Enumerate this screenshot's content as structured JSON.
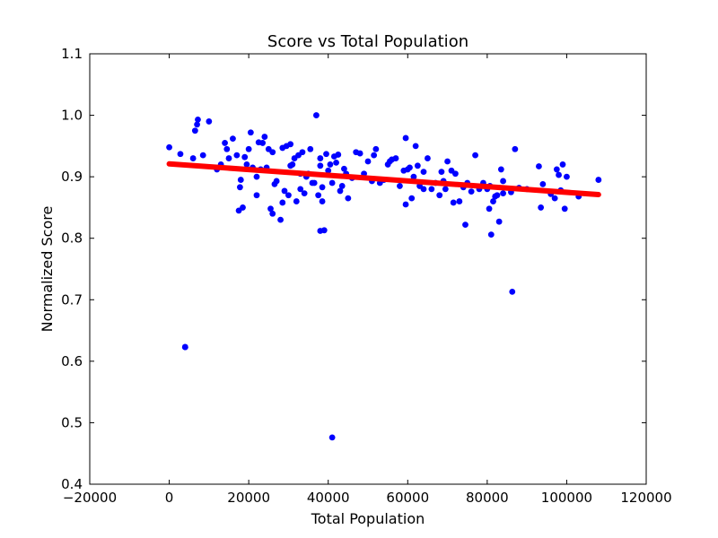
{
  "chart_data": {
    "type": "scatter",
    "title": "Score vs Total Population",
    "xlabel": "Total Population",
    "ylabel": "Normalized Score",
    "xlim": [
      -20000,
      120000
    ],
    "ylim": [
      0.4,
      1.1
    ],
    "xticks": [
      -20000,
      0,
      20000,
      40000,
      60000,
      80000,
      100000,
      120000
    ],
    "yticks": [
      0.4,
      0.5,
      0.6,
      0.7,
      0.8,
      0.9,
      1.0,
      1.1
    ],
    "xtick_labels": [
      "−20000",
      "0",
      "20000",
      "40000",
      "60000",
      "80000",
      "100000",
      "120000"
    ],
    "ytick_labels": [
      "0.4",
      "0.5",
      "0.6",
      "0.7",
      "0.8",
      "0.9",
      "1.0",
      "1.1"
    ],
    "grid": false,
    "colors": {
      "points": "#0000ff",
      "fit": "#ff0000"
    },
    "series": [
      {
        "kind": "points",
        "x": [
          0,
          2800,
          4000,
          6000,
          6500,
          7000,
          7200,
          8500,
          10000,
          12000,
          13000,
          14000,
          14500,
          15000,
          16000,
          17000,
          17500,
          17800,
          18000,
          18500,
          19000,
          19500,
          20000,
          20500,
          21000,
          22000,
          22000,
          22500,
          23000,
          23500,
          24000,
          24500,
          25000,
          25500,
          26000,
          26500,
          27000,
          28000,
          28500,
          28500,
          29000,
          29500,
          30000,
          30500,
          31000,
          31500,
          32000,
          32500,
          33000,
          33500,
          34000,
          34500,
          35000,
          35500,
          36000,
          36500,
          37000,
          37500,
          38000,
          38500,
          38000,
          39000,
          39500,
          40000,
          40500,
          41000,
          41500,
          42000,
          42500,
          43000,
          43500,
          44000,
          44500,
          45000,
          46000,
          47000,
          48000,
          49000,
          50000,
          51000,
          51500,
          52000,
          53000,
          54000,
          55000,
          55500,
          56000,
          57000,
          58000,
          59000,
          59500,
          60000,
          60500,
          61000,
          61500,
          62000,
          62500,
          63000,
          64000,
          65000,
          66000,
          67000,
          68000,
          68500,
          69000,
          69500,
          70000,
          71000,
          71500,
          72000,
          73000,
          74000,
          74500,
          75000,
          76000,
          77000,
          78000,
          79000,
          80000,
          80500,
          81000,
          81500,
          82000,
          82500,
          83000,
          83500,
          84000,
          86000,
          87000,
          88000,
          90000,
          93000,
          93500,
          94000,
          96000,
          97000,
          97500,
          98000,
          98500,
          99000,
          99500,
          100000,
          103000,
          108000,
          41000,
          4000,
          38500,
          30500,
          33000,
          80700,
          84000,
          38000,
          26000,
          64000,
          59500,
          86300
        ],
        "y": [
          0.948,
          0.937,
          0.623,
          0.93,
          0.975,
          0.985,
          0.993,
          0.935,
          0.99,
          0.912,
          0.92,
          0.955,
          0.945,
          0.93,
          0.962,
          0.935,
          0.845,
          0.883,
          0.895,
          0.85,
          0.932,
          0.92,
          0.945,
          0.972,
          0.915,
          0.9,
          0.87,
          0.956,
          0.912,
          0.955,
          0.965,
          0.915,
          0.945,
          0.848,
          0.94,
          0.888,
          0.893,
          0.83,
          0.947,
          0.858,
          0.877,
          0.95,
          0.87,
          0.953,
          0.92,
          0.93,
          0.86,
          0.935,
          0.88,
          0.94,
          0.873,
          0.9,
          0.905,
          0.945,
          0.89,
          0.89,
          1.0,
          0.87,
          0.93,
          0.883,
          0.918,
          0.813,
          0.937,
          0.91,
          0.92,
          0.89,
          0.933,
          0.923,
          0.936,
          0.877,
          0.885,
          0.913,
          0.905,
          0.865,
          0.898,
          0.94,
          0.938,
          0.905,
          0.925,
          0.893,
          0.935,
          0.945,
          0.89,
          0.895,
          0.92,
          0.925,
          0.928,
          0.93,
          0.885,
          0.91,
          0.963,
          0.912,
          0.915,
          0.865,
          0.9,
          0.95,
          0.918,
          0.885,
          0.908,
          0.93,
          0.88,
          0.89,
          0.87,
          0.908,
          0.893,
          0.88,
          0.925,
          0.91,
          0.858,
          0.905,
          0.86,
          0.883,
          0.822,
          0.89,
          0.876,
          0.935,
          0.88,
          0.89,
          0.88,
          0.848,
          0.806,
          0.86,
          0.868,
          0.87,
          0.827,
          0.912,
          0.893,
          0.875,
          0.945,
          0.882,
          0.88,
          0.917,
          0.85,
          0.888,
          0.872,
          0.865,
          0.912,
          0.903,
          0.878,
          0.92,
          0.848,
          0.9,
          0.868,
          0.895,
          0.476,
          0.623,
          0.86,
          0.918,
          0.905,
          0.885,
          0.873,
          0.812,
          0.84,
          0.88,
          0.855,
          0.713
        ]
      },
      {
        "kind": "fit",
        "x": [
          0,
          108000
        ],
        "y": [
          0.921,
          0.871
        ]
      }
    ]
  }
}
